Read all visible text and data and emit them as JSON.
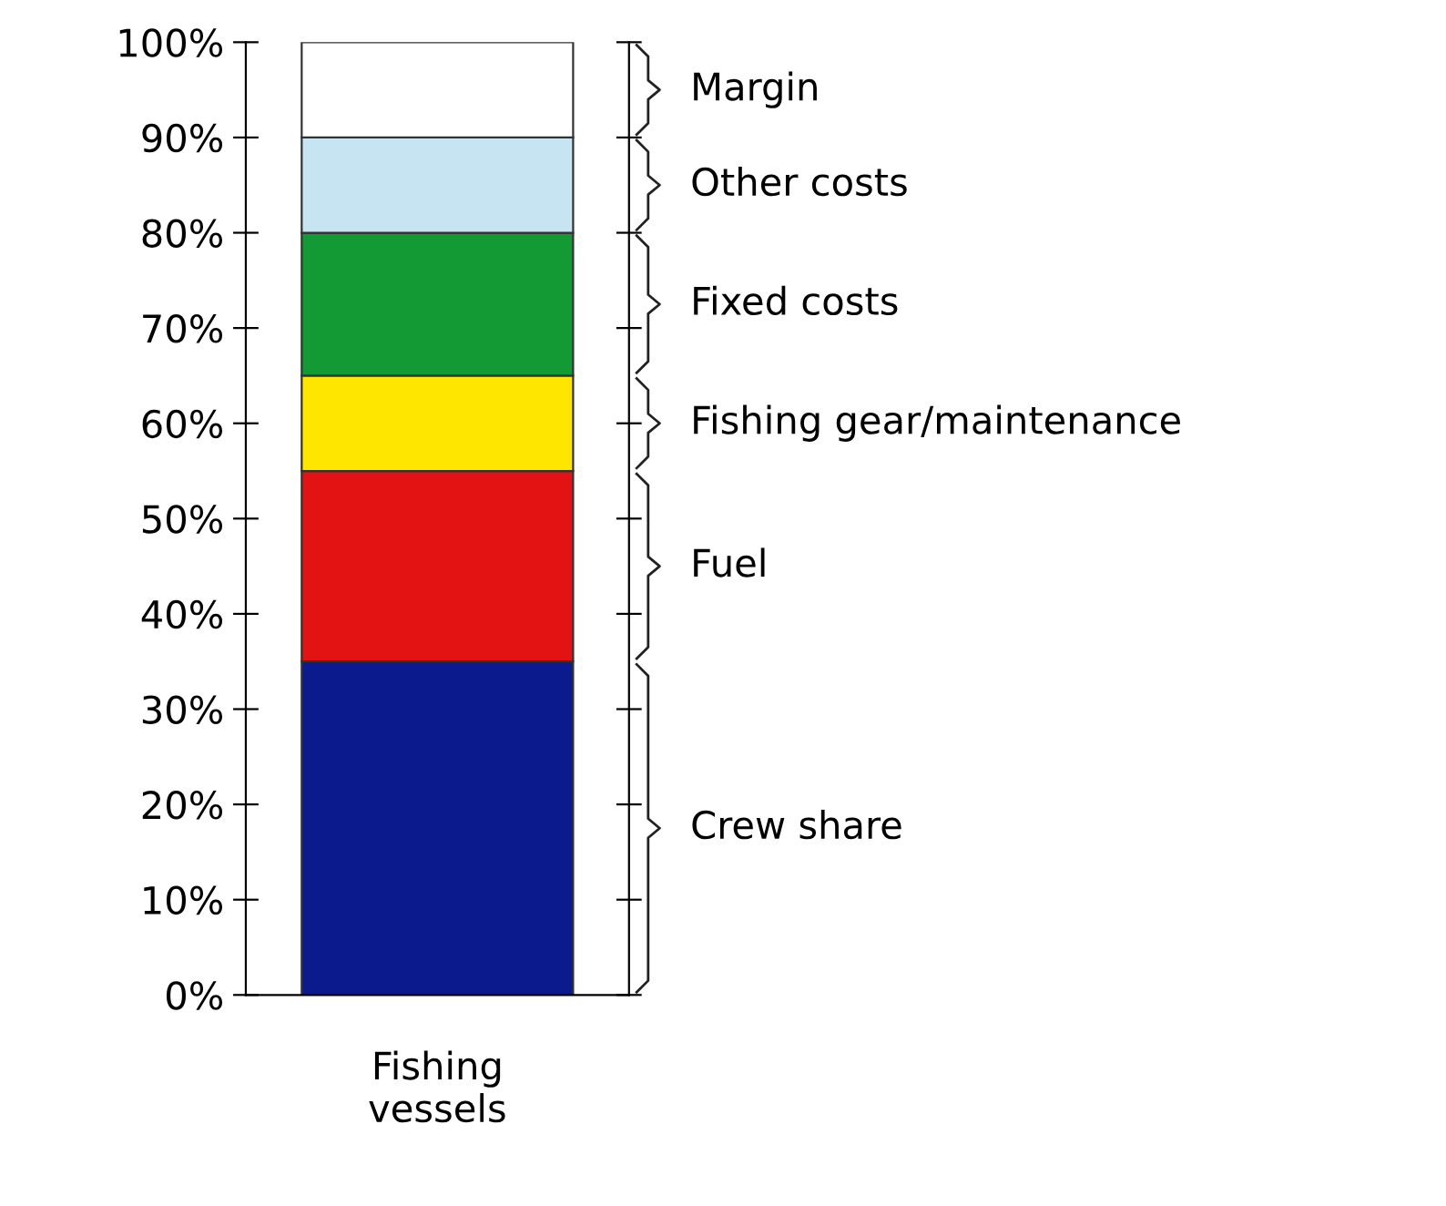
{
  "chart_data": {
    "type": "bar",
    "stacked": true,
    "categories": [
      "Fishing\nvessels"
    ],
    "series": [
      {
        "name": "Crew share",
        "color": "#0b1a8c",
        "values": [
          35
        ]
      },
      {
        "name": "Fuel",
        "color": "#e31313",
        "values": [
          20
        ]
      },
      {
        "name": "Fishing gear/maintenance",
        "color": "#ffe600",
        "values": [
          10
        ]
      },
      {
        "name": "Fixed costs",
        "color": "#139a34",
        "values": [
          15
        ]
      },
      {
        "name": "Other costs",
        "color": "#c6e4f2",
        "values": [
          10
        ]
      },
      {
        "name": "Margin",
        "color": "#ffffff",
        "values": [
          10
        ]
      }
    ],
    "ylim": [
      0,
      100
    ],
    "yticks": [
      {
        "value": 0,
        "label": "0%"
      },
      {
        "value": 10,
        "label": "10%"
      },
      {
        "value": 20,
        "label": "20%"
      },
      {
        "value": 30,
        "label": "30%"
      },
      {
        "value": 40,
        "label": "40%"
      },
      {
        "value": 50,
        "label": "50%"
      },
      {
        "value": 60,
        "label": "60%"
      },
      {
        "value": 70,
        "label": "70%"
      },
      {
        "value": 80,
        "label": "80%"
      },
      {
        "value": 90,
        "label": "90%"
      },
      {
        "value": 100,
        "label": "100%"
      }
    ],
    "grid": false,
    "legend": false
  }
}
